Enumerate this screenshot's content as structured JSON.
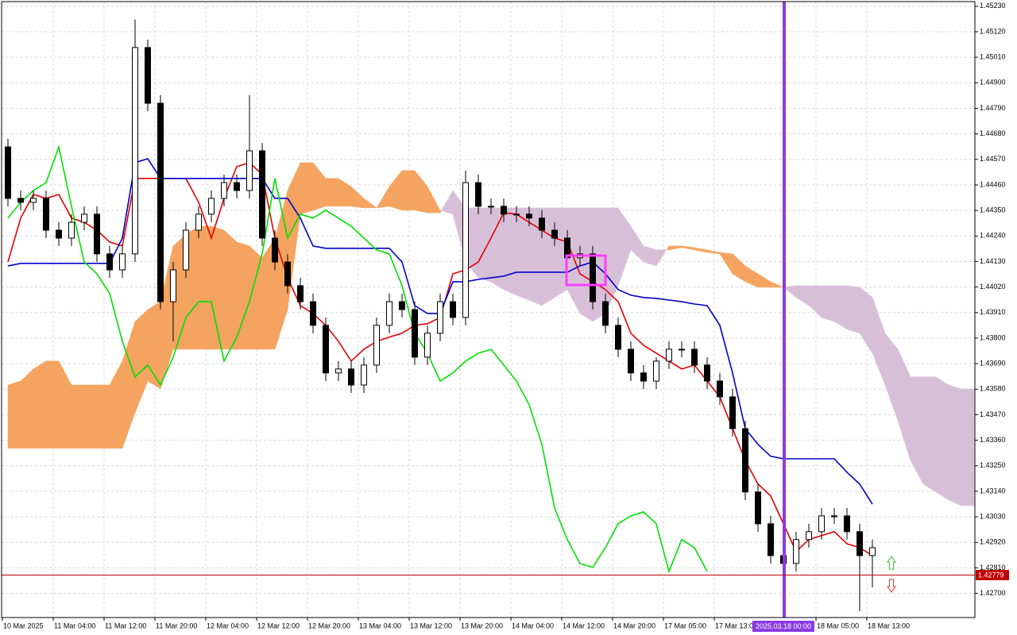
{
  "chart_data": {
    "type": "candlestick",
    "ylim": [
      1.42596,
      1.4525
    ],
    "yticks": [
      {
        "value": 1.4523,
        "label": "1.45230"
      },
      {
        "value": 1.4512,
        "label": "1.45120"
      },
      {
        "value": 1.4501,
        "label": "1.45010"
      },
      {
        "value": 1.449,
        "label": "1.44900"
      },
      {
        "value": 1.4479,
        "label": "1.44790"
      },
      {
        "value": 1.4468,
        "label": "1.44680"
      },
      {
        "value": 1.4457,
        "label": "1.44570"
      },
      {
        "value": 1.4446,
        "label": "1.44460"
      },
      {
        "value": 1.4435,
        "label": "1.44350"
      },
      {
        "value": 1.4424,
        "label": "1.44240"
      },
      {
        "value": 1.4413,
        "label": "1.44130"
      },
      {
        "value": 1.4402,
        "label": "1.44020"
      },
      {
        "value": 1.4391,
        "label": "1.43910"
      },
      {
        "value": 1.438,
        "label": "1.43800"
      },
      {
        "value": 1.4369,
        "label": "1.43690"
      },
      {
        "value": 1.4358,
        "label": "1.43580"
      },
      {
        "value": 1.4347,
        "label": "1.43470"
      },
      {
        "value": 1.4336,
        "label": "1.43360"
      },
      {
        "value": 1.4325,
        "label": "1.43250"
      },
      {
        "value": 1.4314,
        "label": "1.43140"
      },
      {
        "value": 1.4303,
        "label": "1.43030"
      },
      {
        "value": 1.4292,
        "label": "1.42920"
      },
      {
        "value": 1.4281,
        "label": "1.42810"
      },
      {
        "value": 1.427,
        "label": "1.42700"
      }
    ],
    "xticks": [
      "10 Mar 2025",
      "11 Mar 04:00",
      "11 Mar 12:00",
      "11 Mar 20:00",
      "12 Mar 04:00",
      "12 Mar 12:00",
      "12 Mar 20:00",
      "13 Mar 04:00",
      "13 Mar 12:00",
      "13 Mar 20:00",
      "14 Mar 04:00",
      "14 Mar 12:00",
      "14 Mar 20:00",
      "17 Mar 05:00",
      "17 Mar 13:00",
      null,
      "18 Mar 05:00",
      "18 Mar 13:00"
    ],
    "grid": true,
    "cursor_label": "2025.03.18 00:00",
    "current_price": {
      "value": 1.42779,
      "label": "1.42779",
      "color": "#c00000"
    },
    "ohlc": [
      [
        1.44624,
        1.44659,
        1.44368,
        1.44402
      ],
      [
        1.44402,
        1.44436,
        1.44351,
        1.44385
      ],
      [
        1.44385,
        1.44436,
        1.44351,
        1.44402
      ],
      [
        1.44402,
        1.44436,
        1.44231,
        1.44265
      ],
      [
        1.44265,
        1.44299,
        1.44197,
        1.44231
      ],
      [
        1.44231,
        1.44334,
        1.44197,
        1.44299
      ],
      [
        1.44299,
        1.44368,
        1.44265,
        1.44334
      ],
      [
        1.44334,
        1.44368,
        1.44128,
        1.44163
      ],
      [
        1.44163,
        1.44197,
        1.4406,
        1.44094
      ],
      [
        1.44094,
        1.44197,
        1.4406,
        1.44163
      ],
      [
        1.44163,
        1.45172,
        1.44128,
        1.45052
      ],
      [
        1.45052,
        1.45086,
        1.44778,
        1.44812
      ],
      [
        1.44812,
        1.44847,
        1.43923,
        1.43957
      ],
      [
        1.43957,
        1.44128,
        1.43786,
        1.44094
      ],
      [
        1.44094,
        1.44299,
        1.4406,
        1.44265
      ],
      [
        1.44265,
        1.44368,
        1.44231,
        1.44334
      ],
      [
        1.44334,
        1.44436,
        1.44299,
        1.44402
      ],
      [
        1.44402,
        1.44505,
        1.44368,
        1.4447
      ],
      [
        1.4447,
        1.44505,
        1.44402,
        1.44436
      ],
      [
        1.44436,
        1.44847,
        1.44402,
        1.44607
      ],
      [
        1.44607,
        1.44641,
        1.44197,
        1.44231
      ],
      [
        1.44231,
        1.44265,
        1.44094,
        1.44128
      ],
      [
        1.44128,
        1.44163,
        1.43992,
        1.44026
      ],
      [
        1.44026,
        1.4406,
        1.43923,
        1.43957
      ],
      [
        1.43957,
        1.43992,
        1.43821,
        1.43855
      ],
      [
        1.43855,
        1.43889,
        1.43615,
        1.4365
      ],
      [
        1.4365,
        1.43701,
        1.43615,
        1.43667
      ],
      [
        1.43667,
        1.43701,
        1.43564,
        1.43598
      ],
      [
        1.43598,
        1.43718,
        1.43564,
        1.43684
      ],
      [
        1.43684,
        1.43889,
        1.4365,
        1.43855
      ],
      [
        1.43855,
        1.43992,
        1.43821,
        1.43957
      ],
      [
        1.43957,
        1.43992,
        1.43889,
        1.43923
      ],
      [
        1.43923,
        1.43957,
        1.43684,
        1.43718
      ],
      [
        1.43718,
        1.43855,
        1.43684,
        1.43821
      ],
      [
        1.43821,
        1.43992,
        1.43786,
        1.43957
      ],
      [
        1.43957,
        1.43992,
        1.43855,
        1.43889
      ],
      [
        1.43889,
        1.44522,
        1.43855,
        1.4447
      ],
      [
        1.4447,
        1.44505,
        1.44334,
        1.44368
      ],
      [
        1.44368,
        1.44402,
        1.44334,
        1.44368
      ],
      [
        1.44368,
        1.44402,
        1.44299,
        1.44334
      ],
      [
        1.44334,
        1.44368,
        1.44299,
        1.44334
      ],
      [
        1.44334,
        1.44368,
        1.44282,
        1.44317
      ],
      [
        1.44317,
        1.44351,
        1.44231,
        1.44265
      ],
      [
        1.44265,
        1.44299,
        1.44197,
        1.44231
      ],
      [
        1.44231,
        1.44265,
        1.44111,
        1.44146
      ],
      [
        1.44146,
        1.44197,
        1.44111,
        1.44163
      ],
      [
        1.44163,
        1.44197,
        1.43923,
        1.43957
      ],
      [
        1.43957,
        1.43992,
        1.43821,
        1.43855
      ],
      [
        1.43855,
        1.43889,
        1.43718,
        1.43752
      ],
      [
        1.43752,
        1.43786,
        1.43615,
        1.4365
      ],
      [
        1.4365,
        1.43684,
        1.43581,
        1.43615
      ],
      [
        1.43615,
        1.43718,
        1.43581,
        1.43701
      ],
      [
        1.43701,
        1.43786,
        1.43667,
        1.43752
      ],
      [
        1.43752,
        1.43786,
        1.43718,
        1.43752
      ],
      [
        1.43752,
        1.43786,
        1.4365,
        1.43684
      ],
      [
        1.43684,
        1.43718,
        1.43581,
        1.43615
      ],
      [
        1.43615,
        1.4365,
        1.43513,
        1.43547
      ],
      [
        1.43547,
        1.43581,
        1.43376,
        1.4341
      ],
      [
        1.4341,
        1.43444,
        1.43102,
        1.43137
      ],
      [
        1.43137,
        1.43171,
        1.42966,
        1.43
      ],
      [
        1.43,
        1.43034,
        1.42829,
        1.42863
      ],
      [
        1.42863,
        1.42897,
        1.4276,
        1.42829
      ],
      [
        1.42829,
        1.42966,
        1.42795,
        1.42932
      ],
      [
        1.42932,
        1.43,
        1.42897,
        1.42966
      ],
      [
        1.42966,
        1.43068,
        1.42932,
        1.43034
      ],
      [
        1.43034,
        1.43068,
        1.43,
        1.43034
      ],
      [
        1.43034,
        1.43068,
        1.42932,
        1.42966
      ],
      [
        1.42966,
        1.43,
        1.42624,
        1.42863
      ],
      [
        1.42863,
        1.42932,
        1.42726,
        1.42897
      ]
    ],
    "candle_colors": {
      "up": "#ffffff",
      "down": "#000000",
      "outline": "#000000"
    },
    "cloud": {
      "color_up": "#f4a460",
      "color_down": "#d8bfd8",
      "span_a": [
        1.43598,
        1.43615,
        1.43667,
        1.43701,
        1.43701,
        1.43598,
        1.43598,
        1.43598,
        1.43598,
        1.43701,
        1.43872,
        1.43923,
        1.43957,
        1.44197,
        1.44248,
        1.44282,
        1.44282,
        1.44265,
        1.44214,
        1.44197,
        1.44146,
        1.44231,
        1.44436,
        1.44556,
        1.44556,
        1.44488,
        1.44488,
        1.44453,
        1.44402,
        1.44361,
        1.44453,
        1.44522,
        1.44522,
        1.44453,
        1.44351,
        1.44334,
        1.44128,
        1.4406,
        1.44043,
        1.44009,
        1.43985,
        1.43964,
        1.4394,
        1.43975,
        1.44009,
        1.43906,
        1.43872,
        1.43906,
        1.44026,
        1.4418,
        1.44128,
        1.44111,
        1.44197,
        1.44197,
        1.4419,
        1.4418,
        1.44169,
        1.44163,
        1.44111,
        1.44077,
        1.44043,
        1.44019,
        1.43975,
        1.4394,
        1.43889,
        1.43872,
        1.43838,
        1.43821,
        1.43735,
        1.43598,
        1.43444,
        1.43273,
        1.43171,
        1.43137,
        1.43102,
        1.43078,
        1.43078
      ],
      "span_b": [
        1.43325,
        1.43325,
        1.43325,
        1.43325,
        1.43325,
        1.43325,
        1.43325,
        1.43325,
        1.43325,
        1.43325,
        1.43479,
        1.43615,
        1.43581,
        1.43752,
        1.43752,
        1.43752,
        1.43752,
        1.43752,
        1.43752,
        1.43752,
        1.43752,
        1.43752,
        1.43923,
        1.44334,
        1.44351,
        1.44368,
        1.44368,
        1.44368,
        1.44361,
        1.44361,
        1.44368,
        1.44351,
        1.44351,
        1.4434,
        1.4434,
        1.44436,
        1.44361,
        1.44361,
        1.44361,
        1.44361,
        1.44361,
        1.44361,
        1.44361,
        1.44361,
        1.44361,
        1.44361,
        1.44361,
        1.44361,
        1.44361,
        1.44282,
        1.44197,
        1.4418,
        1.4418,
        1.4419,
        1.4418,
        1.44169,
        1.44163,
        1.44077,
        1.44043,
        1.44019,
        1.44019,
        1.44019,
        1.44026,
        1.44026,
        1.44026,
        1.44026,
        1.44026,
        1.44019,
        1.43975,
        1.43821,
        1.43752,
        1.43633,
        1.43633,
        1.43633,
        1.43598,
        1.43581,
        1.43581
      ]
    },
    "lines": [
      {
        "color": "#e00000",
        "values": [
          1.44128,
          1.44317,
          1.44419,
          1.44402,
          1.44419,
          1.44317,
          1.44299,
          1.44265,
          1.44214,
          1.44197,
          1.44488,
          1.44488,
          1.44488,
          1.44488,
          1.44488,
          1.44385,
          1.44231,
          1.44402,
          1.44539,
          1.44556,
          1.44505,
          1.44231,
          1.4406,
          1.4394,
          1.43906,
          1.43855,
          1.43786,
          1.43701,
          1.43752,
          1.43786,
          1.43804,
          1.43821,
          1.43855,
          1.43862,
          1.43889,
          1.44077,
          1.44094,
          1.44128,
          1.44231,
          1.4434,
          1.44334,
          1.44299,
          1.44265,
          1.44231,
          1.44214,
          1.44077,
          1.44043,
          1.44009,
          1.43957,
          1.43821,
          1.43769,
          1.43735,
          1.43701,
          1.43667,
          1.43684,
          1.43615,
          1.43547,
          1.4341,
          1.43273,
          1.43171,
          1.4312,
          1.43,
          1.4288,
          1.42932,
          1.42949,
          1.42966,
          1.42914,
          1.42897,
          1.42863,
          null,
          null,
          null,
          null,
          null,
          null,
          null,
          null
        ]
      },
      {
        "color": "#0000cc",
        "values": [
          1.44111,
          1.44122,
          1.44122,
          1.44122,
          1.44122,
          1.44122,
          1.44122,
          1.44122,
          1.44122,
          1.44231,
          1.44556,
          1.44573,
          1.44488,
          1.44488,
          1.44488,
          1.44488,
          1.44488,
          1.44488,
          1.44488,
          1.44488,
          1.44488,
          1.44402,
          1.44402,
          1.44317,
          1.44197,
          1.44187,
          1.44187,
          1.44187,
          1.44187,
          1.44187,
          1.44187,
          1.44128,
          1.4394,
          1.43906,
          1.43906,
          1.44043,
          1.44043,
          1.44053,
          1.4406,
          1.44067,
          1.44084,
          1.44084,
          1.44084,
          1.44084,
          1.44084,
          1.44111,
          1.44128,
          1.44077,
          1.44009,
          1.43985,
          1.43975,
          1.43971,
          1.43964,
          1.43957,
          1.43947,
          1.4394,
          1.43855,
          1.4365,
          1.4341,
          1.43342,
          1.43291,
          1.4328,
          1.4328,
          1.4328,
          1.4328,
          1.4328,
          1.43222,
          1.43171,
          1.43085,
          null,
          null,
          null,
          null,
          null,
          null,
          null,
          null
        ]
      },
      {
        "color": "#00e000",
        "values": [
          1.44317,
          1.44385,
          1.44436,
          1.4447,
          1.44624,
          1.44368,
          1.44128,
          1.44077,
          1.43992,
          1.43786,
          1.43633,
          1.43684,
          1.43598,
          1.43718,
          1.43889,
          1.43957,
          1.43957,
          1.43701,
          1.43804,
          1.43957,
          1.44163,
          1.44488,
          1.44231,
          1.44334,
          1.44317,
          1.44351,
          1.44317,
          1.44282,
          1.44231,
          1.4418,
          1.44163,
          1.44026,
          1.43821,
          1.43735,
          1.43615,
          1.4365,
          1.43701,
          1.43735,
          1.43752,
          1.43684,
          1.43615,
          1.43513,
          1.43342,
          1.43068,
          1.42932,
          1.42829,
          1.42812,
          1.42897,
          1.43,
          1.43034,
          1.43051,
          1.43,
          1.42795,
          1.42932,
          1.42897,
          1.42795,
          null,
          null,
          null,
          null,
          null,
          null,
          null,
          null,
          null,
          null,
          null,
          null,
          null,
          null,
          null,
          null,
          null,
          null,
          null,
          null,
          null
        ]
      }
    ]
  }
}
